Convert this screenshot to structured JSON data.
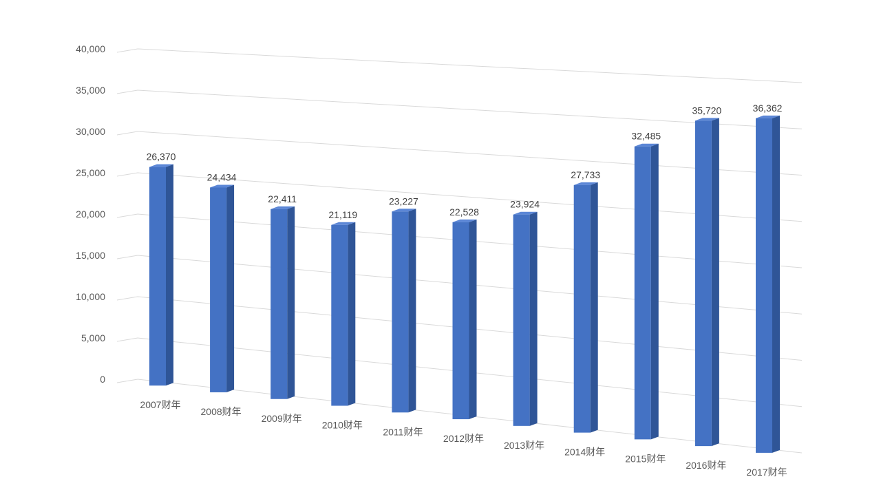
{
  "chart_data": {
    "type": "bar",
    "style": "3d-column",
    "categories": [
      "2007财年",
      "2008财年",
      "2009财年",
      "2010财年",
      "2011财年",
      "2012财年",
      "2013财年",
      "2014财年",
      "2015财年",
      "2016财年",
      "2017财年"
    ],
    "values": [
      26370,
      24434,
      22411,
      21119,
      23227,
      22528,
      23924,
      27733,
      32485,
      35720,
      36362
    ],
    "value_labels": [
      "26,370",
      "24,434",
      "22,411",
      "21,119",
      "23,227",
      "22,528",
      "23,924",
      "27,733",
      "32,485",
      "35,720",
      "36,362"
    ],
    "ylim": [
      0,
      40000
    ],
    "yticks": [
      0,
      5000,
      10000,
      15000,
      20000,
      25000,
      30000,
      35000,
      40000
    ],
    "ytick_labels": [
      "0",
      "5,000",
      "10,000",
      "15,000",
      "20,000",
      "25,000",
      "30,000",
      "35,000",
      "40,000"
    ],
    "grid": true,
    "legend": "none",
    "colors": {
      "bar_front": "#4472c4",
      "bar_side": "#2f5597",
      "bar_top": "#5b86d6",
      "grid": "#d9d9d9",
      "text": "#595959"
    }
  }
}
